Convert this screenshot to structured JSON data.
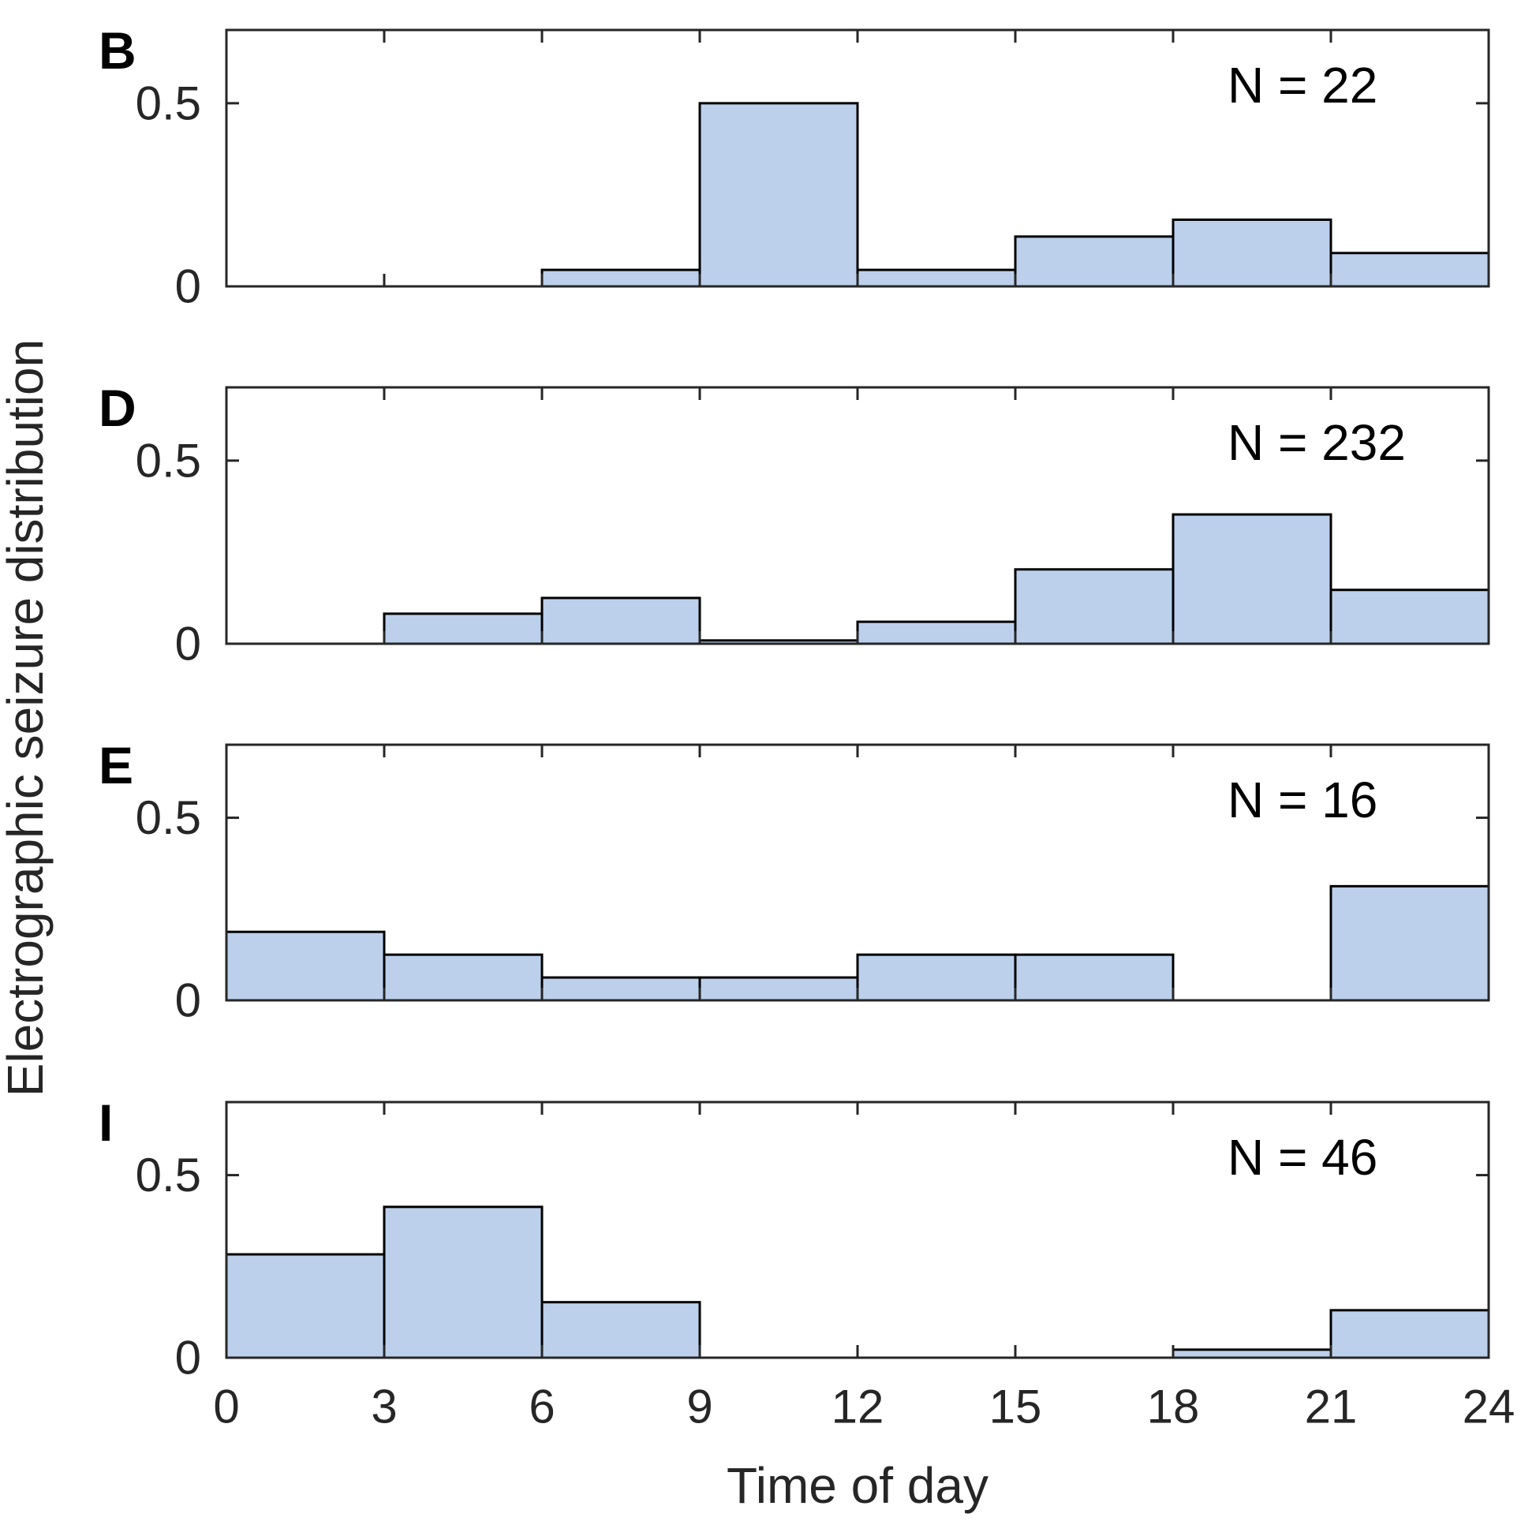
{
  "chart_data": {
    "type": "bar",
    "ylabel": "Electrographic seizure distribution",
    "xlabel": "Time of day",
    "xlim": [
      0,
      24
    ],
    "ylim": [
      0,
      0.7
    ],
    "x_ticks": [
      "0",
      "3",
      "6",
      "9",
      "12",
      "15",
      "18",
      "21",
      "24"
    ],
    "y_ticks": [
      "0",
      "0.5"
    ],
    "bin_edges": [
      0,
      3,
      6,
      9,
      12,
      15,
      18,
      21,
      24
    ],
    "bar_color": "#bcd0ec",
    "edge_color": "#000000",
    "grid": false,
    "panels": [
      {
        "letter": "B",
        "n_label": "N = 22",
        "values": [
          0,
          0,
          0.045,
          0.5,
          0.045,
          0.136,
          0.182,
          0.091
        ]
      },
      {
        "letter": "D",
        "n_label": "N = 232",
        "values": [
          0,
          0.082,
          0.125,
          0.009,
          0.06,
          0.203,
          0.353,
          0.147
        ]
      },
      {
        "letter": "E",
        "n_label": "N = 16",
        "values": [
          0.1875,
          0.125,
          0.0625,
          0.0625,
          0.125,
          0.125,
          0,
          0.3125
        ]
      },
      {
        "letter": "I",
        "n_label": "N = 46",
        "values": [
          0.283,
          0.413,
          0.152,
          0,
          0,
          0,
          0.022,
          0.13
        ]
      }
    ]
  }
}
